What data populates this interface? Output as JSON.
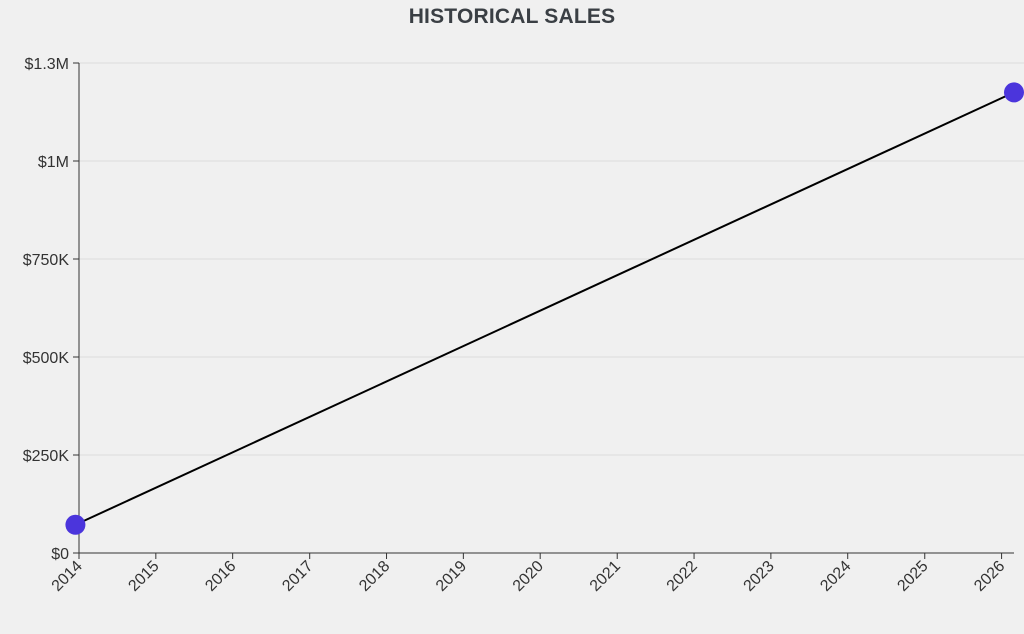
{
  "chart_data": {
    "type": "line",
    "title": "HISTORICAL SALES",
    "xlabel": "",
    "ylabel": "",
    "x_ticks": [
      "2014",
      "2015",
      "2016",
      "2017",
      "2018",
      "2019",
      "2020",
      "2021",
      "2022",
      "2023",
      "2024",
      "2025",
      "2026"
    ],
    "y_ticks": [
      {
        "value": 0,
        "label": "$0"
      },
      {
        "value": 250000,
        "label": "$250K"
      },
      {
        "value": 500000,
        "label": "$500K"
      },
      {
        "value": 750000,
        "label": "$750K"
      },
      {
        "value": 1000000,
        "label": "$1M"
      },
      {
        "value": 1250000,
        "label": "$1.3M"
      }
    ],
    "xlim": [
      "2014-01-01",
      "2026-03-01"
    ],
    "ylim": [
      0,
      1250000
    ],
    "grid": "horizontal",
    "series": [
      {
        "points": [
          {
            "x": "2013-12-15",
            "y": 72000
          },
          {
            "x": "2026-03-01",
            "y": 1175000
          }
        ]
      }
    ],
    "colors": {
      "line": "#000000",
      "marker": "#4b35dc",
      "grid": "#dddddd",
      "axis": "#333333"
    }
  }
}
